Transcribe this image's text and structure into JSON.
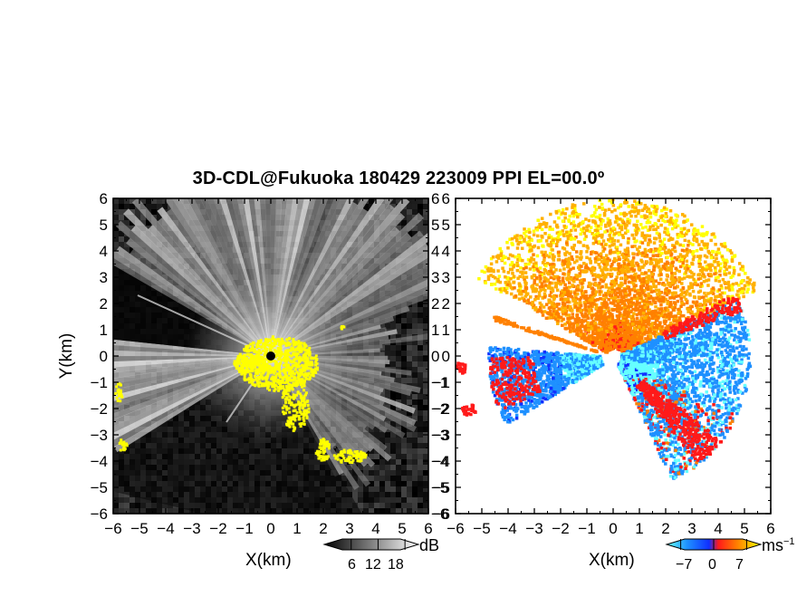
{
  "chart_data": [
    {
      "type": "heatmap",
      "panel": "left",
      "title": "3D-CDL@Fukuoka 180429 223009 PPI EL=00.0º",
      "xlabel": "X(km)",
      "ylabel": "Y(km)",
      "xlim": [
        -6,
        6
      ],
      "ylim": [
        -6,
        6
      ],
      "xticks": [
        "-6",
        "-5",
        "-4",
        "-3",
        "-2",
        "-1",
        "0",
        "1",
        "2",
        "3",
        "4",
        "5",
        "6"
      ],
      "yticks": [
        "6",
        "5",
        "4",
        "3",
        "2",
        "1",
        "0",
        "-1",
        "-2",
        "-3",
        "-4",
        "-5",
        "-6"
      ],
      "colorbar": {
        "unit": "dB",
        "ticks": [
          "6",
          "12",
          "18"
        ],
        "tick_values": [
          6,
          12,
          18
        ],
        "range": [
          0,
          21
        ],
        "colormap": "grayscale"
      },
      "overlay_color": "#ffff00"
    },
    {
      "type": "heatmap",
      "panel": "right",
      "xlabel": "X(km)",
      "xlim": [
        -6,
        6
      ],
      "ylim": [
        -6,
        6
      ],
      "xticks": [
        "-6",
        "-5",
        "-4",
        "-3",
        "-2",
        "-1",
        "0",
        "1",
        "2",
        "3",
        "4",
        "5",
        "6"
      ],
      "yticks": [
        "6",
        "5",
        "4",
        "3",
        "2",
        "1",
        "0",
        "-1",
        "-2",
        "-3",
        "-4",
        "-5",
        "-6"
      ],
      "colorbar": {
        "unit": "ms",
        "unit_exponent": "−1",
        "ticks": [
          "−7",
          "0",
          "7"
        ],
        "tick_values": [
          -7,
          0,
          7
        ],
        "range": [
          -10,
          10
        ],
        "colormap": "cyan-blue-red-orange-yellow"
      }
    }
  ]
}
